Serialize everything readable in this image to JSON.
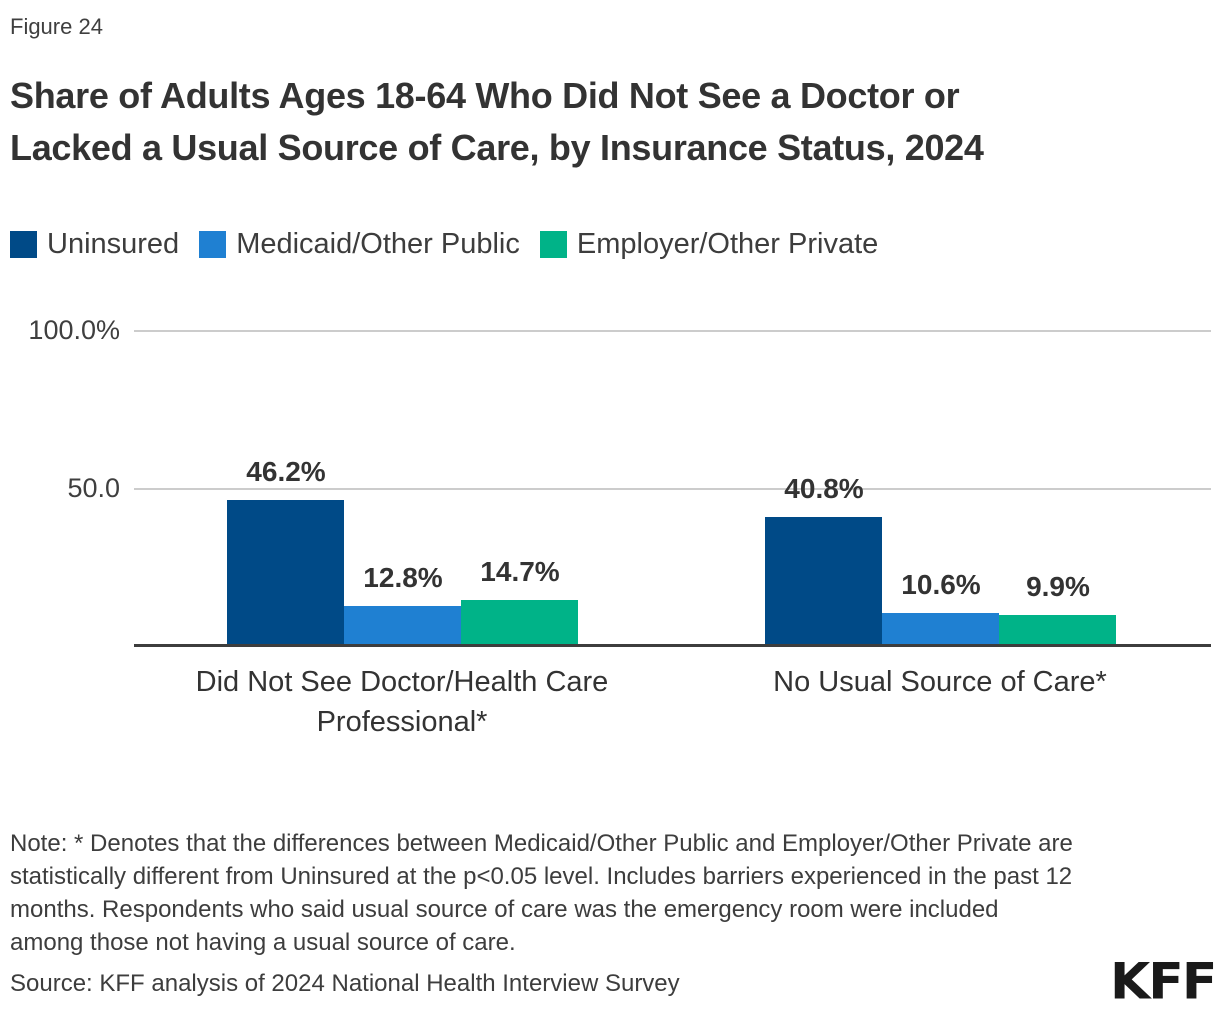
{
  "header": {
    "figure_label": "Figure 24",
    "title_line1": "Share of Adults Ages 18-64 Who Did Not See a Doctor or",
    "title_line2": "Lacked a Usual Source of Care, by Insurance Status, 2024"
  },
  "colors": {
    "uninsured": "#004A87",
    "medicaid_other_public": "#1F80D2",
    "employer_other_private": "#00B388",
    "gridline": "#CCCCCC",
    "axis_line": "#3D3D3D",
    "text": "#333333"
  },
  "legend": {
    "items": [
      {
        "label": "Uninsured",
        "color": "#004A87"
      },
      {
        "label": "Medicaid/Other Public",
        "color": "#1F80D2"
      },
      {
        "label": "Employer/Other Private",
        "color": "#00B388"
      }
    ]
  },
  "chart_data": {
    "type": "bar",
    "categories": [
      "Did Not See Doctor/Health Care Professional*",
      "No Usual Source of Care*"
    ],
    "series": [
      {
        "name": "Uninsured",
        "color": "#004A87",
        "values": [
          46.2,
          40.8
        ]
      },
      {
        "name": "Medicaid/Other Public",
        "color": "#1F80D2",
        "values": [
          12.8,
          10.6
        ]
      },
      {
        "name": "Employer/Other Private",
        "color": "#00B388",
        "values": [
          14.7,
          9.9
        ]
      }
    ],
    "value_labels": [
      [
        "46.2%",
        "12.8%",
        "14.7%"
      ],
      [
        "40.8%",
        "10.6%",
        "9.9%"
      ]
    ],
    "y_axis_ticks": {
      "top": "100.0%",
      "mid": "50.0"
    },
    "ylim": [
      0,
      100
    ],
    "grid": true,
    "legend_position": "top"
  },
  "note": "Note: * Denotes that the differences between Medicaid/Other Public and Employer/Other Private are statistically different from Uninsured at the p<0.05 level. Includes barriers experienced in the past 12 months. Respondents who said usual source of care was the emergency room were included among those not having a usual source of care.",
  "source": "Source: KFF analysis of 2024 National Health Interview Survey",
  "logo": "KFF"
}
